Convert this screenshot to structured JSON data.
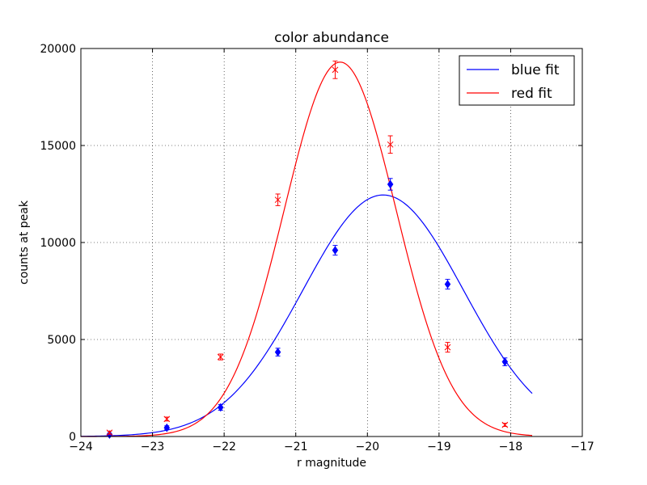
{
  "chart_data": {
    "type": "line",
    "title": "color abundance",
    "xlabel": "r magnitude",
    "ylabel": "counts at peak",
    "xlim": [
      -24,
      -17
    ],
    "ylim": [
      0,
      20000
    ],
    "x_ticks": [
      -24,
      -23,
      -22,
      -21,
      -20,
      -19,
      -18,
      -17
    ],
    "y_ticks": [
      0,
      5000,
      10000,
      15000,
      20000
    ],
    "x_tick_labels": [
      "−24",
      "−23",
      "−22",
      "−21",
      "−20",
      "−19",
      "−18",
      "−17"
    ],
    "y_tick_labels": [
      "0",
      "5000",
      "10000",
      "15000",
      "20000"
    ],
    "grid": true,
    "legend": "top-right",
    "series": [
      {
        "name": "blue fit",
        "color": "#0000ff",
        "marker": "diamond",
        "points": [
          {
            "x": -23.6,
            "y": 100,
            "err": 60
          },
          {
            "x": -22.8,
            "y": 450,
            "err": 100
          },
          {
            "x": -22.05,
            "y": 1500,
            "err": 150
          },
          {
            "x": -21.25,
            "y": 4350,
            "err": 200
          },
          {
            "x": -20.45,
            "y": 9600,
            "err": 250
          },
          {
            "x": -19.68,
            "y": 13000,
            "err": 300
          },
          {
            "x": -18.88,
            "y": 7850,
            "err": 250
          },
          {
            "x": -18.08,
            "y": 3850,
            "err": 200
          }
        ],
        "fit": {
          "amplitude": 12450,
          "center": -19.78,
          "sigma": 1.12,
          "x_range": [
            -24,
            -17.7
          ]
        }
      },
      {
        "name": "red fit",
        "color": "#ff0000",
        "marker": "x",
        "points": [
          {
            "x": -23.6,
            "y": 200,
            "err": 80
          },
          {
            "x": -22.8,
            "y": 900,
            "err": 100
          },
          {
            "x": -22.05,
            "y": 4100,
            "err": 150
          },
          {
            "x": -21.25,
            "y": 12200,
            "err": 300
          },
          {
            "x": -20.45,
            "y": 18900,
            "err": 450
          },
          {
            "x": -19.68,
            "y": 15050,
            "err": 450
          },
          {
            "x": -18.88,
            "y": 4600,
            "err": 250
          },
          {
            "x": -18.08,
            "y": 600,
            "err": 80
          }
        ],
        "fit": {
          "amplitude": 19300,
          "center": -20.38,
          "sigma": 0.78,
          "x_range": [
            -24,
            -17.7
          ]
        }
      }
    ]
  }
}
